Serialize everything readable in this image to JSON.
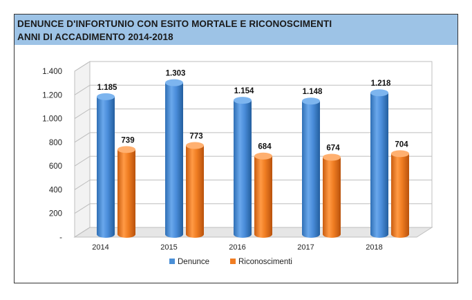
{
  "header": {
    "title_line1": "DENUNCE D'INFORTUNIO CON ESITO MORTALE E RICONOSCIMENTI",
    "title_line2": "ANNI DI ACCADIMENTO 2014-2018"
  },
  "colors": {
    "header_bg": "#9dc3e6",
    "denunce": "#4a8fd6",
    "riconoscimenti": "#f07d22"
  },
  "chart_data": {
    "type": "bar",
    "title": "DENUNCE D'INFORTUNIO CON ESITO MORTALE E RICONOSCIMENTI ANNI DI ACCADIMENTO 2014-2018",
    "categories": [
      "2014",
      "2015",
      "2016",
      "2017",
      "2018"
    ],
    "series": [
      {
        "name": "Denunce",
        "values": [
          1185,
          1303,
          1154,
          1148,
          1218
        ],
        "labels": [
          "1.185",
          "1.303",
          "1.154",
          "1.148",
          "1.218"
        ]
      },
      {
        "name": "Riconoscimenti",
        "values": [
          739,
          773,
          684,
          674,
          704
        ],
        "labels": [
          "739",
          "773",
          "684",
          "674",
          "704"
        ]
      }
    ],
    "ylim": [
      0,
      1400
    ],
    "yticks": [
      0,
      200,
      400,
      600,
      800,
      1000,
      1200,
      1400
    ],
    "ytick_labels": [
      "-",
      "200",
      "400",
      "600",
      "800",
      "1.000",
      "1.200",
      "1.400"
    ],
    "grid": true,
    "legend_position": "bottom",
    "style": "3d-cylinder"
  }
}
